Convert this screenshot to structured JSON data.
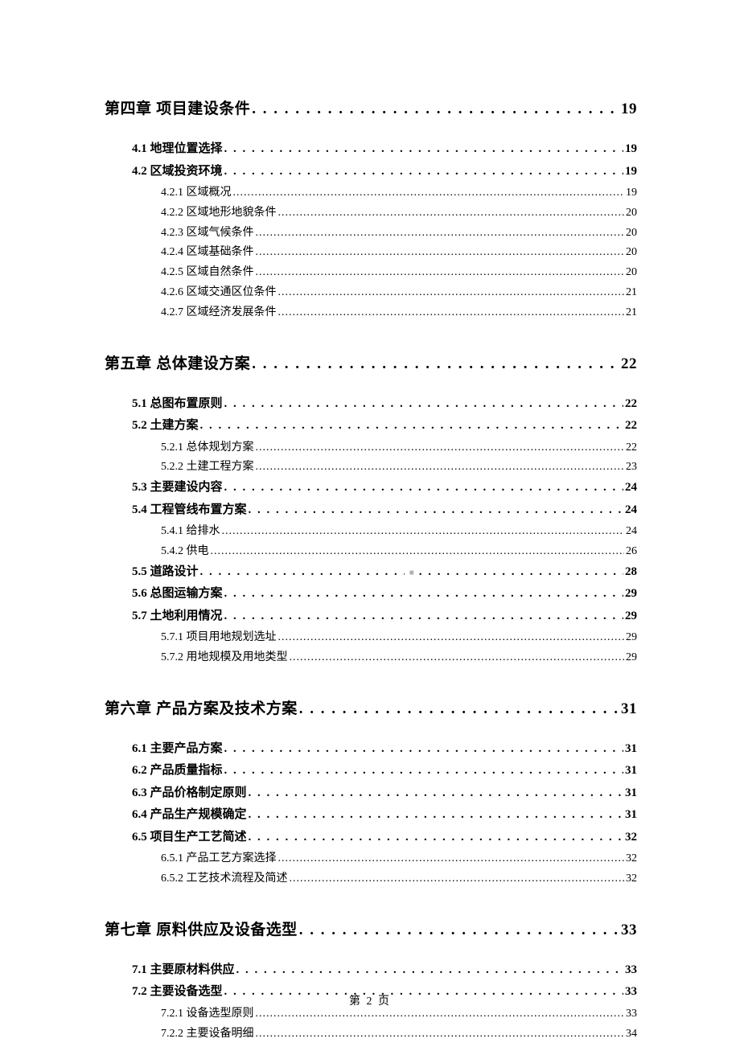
{
  "toc": {
    "entries": [
      {
        "level": 1,
        "title": "第四章  项目建设条件",
        "page": "19"
      },
      {
        "level": 2,
        "title": "4.1 地理位置选择",
        "page": "19"
      },
      {
        "level": 2,
        "title": "4.2 区域投资环境",
        "page": "19"
      },
      {
        "level": 3,
        "title": "4.2.1 区域概况",
        "page": "19"
      },
      {
        "level": 3,
        "title": "4.2.2 区域地形地貌条件",
        "page": "20"
      },
      {
        "level": 3,
        "title": "4.2.3 区域气候条件",
        "page": "20"
      },
      {
        "level": 3,
        "title": "4.2.4 区域基础条件",
        "page": "20"
      },
      {
        "level": 3,
        "title": "4.2.5 区域自然条件",
        "page": "20"
      },
      {
        "level": 3,
        "title": "4.2.6 区域交通区位条件",
        "page": "21"
      },
      {
        "level": 3,
        "title": "4.2.7 区域经济发展条件",
        "page": "21"
      },
      {
        "level": 1,
        "title": "第五章  总体建设方案",
        "page": "22"
      },
      {
        "level": 2,
        "title": "5.1 总图布置原则",
        "page": "22"
      },
      {
        "level": 2,
        "title": "5.2 土建方案",
        "page": "22"
      },
      {
        "level": 3,
        "title": "5.2.1 总体规划方案",
        "page": "22"
      },
      {
        "level": 3,
        "title": "5.2.2 土建工程方案",
        "page": "23"
      },
      {
        "level": 2,
        "title": "5.3 主要建设内容",
        "page": "24"
      },
      {
        "level": 2,
        "title": "5.4 工程管线布置方案",
        "page": "24"
      },
      {
        "level": 3,
        "title": "5.4.1 给排水",
        "page": "24"
      },
      {
        "level": 3,
        "title": "5.4.2 供电",
        "page": "26"
      },
      {
        "level": 2,
        "title": "5.5 道路设计",
        "page": "28",
        "marker": true
      },
      {
        "level": 2,
        "title": "5.6 总图运输方案",
        "page": "29"
      },
      {
        "level": 2,
        "title": "5.7 土地利用情况",
        "page": "29"
      },
      {
        "level": 3,
        "title": "5.7.1 项目用地规划选址",
        "page": "29"
      },
      {
        "level": 3,
        "title": "5.7.2 用地规模及用地类型",
        "page": "29"
      },
      {
        "level": 1,
        "title": "第六章  产品方案及技术方案",
        "page": "31"
      },
      {
        "level": 2,
        "title": "6.1 主要产品方案",
        "page": "31"
      },
      {
        "level": 2,
        "title": "6.2 产品质量指标",
        "page": "31"
      },
      {
        "level": 2,
        "title": "6.3 产品价格制定原则",
        "page": "31"
      },
      {
        "level": 2,
        "title": "6.4 产品生产规模确定",
        "page": "31"
      },
      {
        "level": 2,
        "title": "6.5 项目生产工艺简述",
        "page": "32"
      },
      {
        "level": 3,
        "title": "6.5.1 产品工艺方案选择",
        "page": "32"
      },
      {
        "level": 3,
        "title": "6.5.2 工艺技术流程及简述",
        "page": "32"
      },
      {
        "level": 1,
        "title": "第七章  原料供应及设备选型",
        "page": "33"
      },
      {
        "level": 2,
        "title": "7.1 主要原材料供应",
        "page": "33"
      },
      {
        "level": 2,
        "title": "7.2 主要设备选型",
        "page": "33"
      },
      {
        "level": 3,
        "title": "7.2.1 设备选型原则",
        "page": "33"
      },
      {
        "level": 3,
        "title": "7.2.2 主要设备明细",
        "page": "34"
      }
    ]
  },
  "footer": {
    "text": "第 2 页"
  },
  "styles": {
    "background_color": "#ffffff",
    "text_color": "#000000",
    "level1_fontsize": 19,
    "level2_fontsize": 15,
    "level3_fontsize": 14,
    "dot_char": "."
  }
}
